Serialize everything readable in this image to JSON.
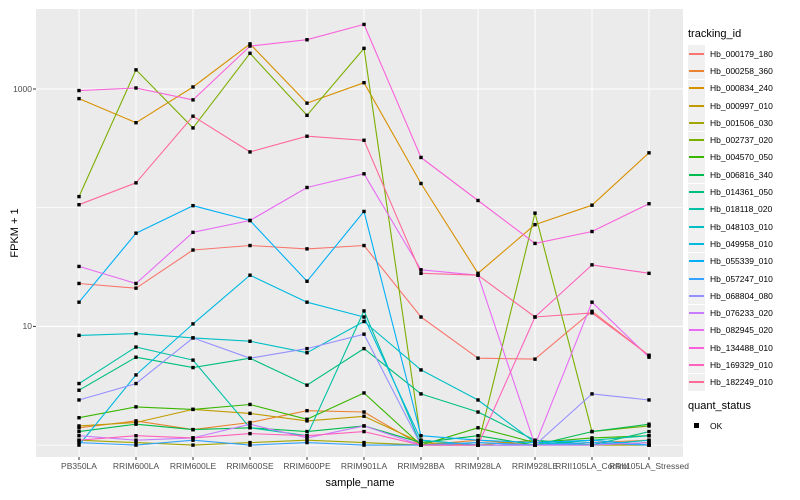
{
  "figure": {
    "y_axis_title": "FPKM + 1",
    "x_axis_title": "sample_name",
    "panel_bg": "#EBEBEB",
    "gridline_color": "#FFFFFF",
    "point_color": "#000000",
    "tick_label_color": "#4D4D4D"
  },
  "legend": {
    "tracking_title": "tracking_id",
    "quant_title": "quant_status",
    "quant_items": [
      {
        "label": "OK"
      }
    ]
  },
  "chart_data": {
    "type": "line",
    "title": "",
    "xlabel": "sample_name",
    "ylabel": "FPKM + 1",
    "y_scale": "log10",
    "y_tick_values": [
      1000,
      10
    ],
    "y_tick_labels": [
      "1000",
      "10"
    ],
    "y_minor_gridlines": [
      100,
      1
    ],
    "ylim": [
      0.7,
      5000
    ],
    "grid": "white major+minor gridlines on gray panel",
    "legend_position": "right",
    "point_shape": "small black square (quant_status = OK)",
    "categories": [
      "PB350LA",
      "RRIM600LA",
      "RRIM600LE",
      "RRIM600SE",
      "RRIM600PE",
      "RRIM901LA",
      "RRIM928BA",
      "RRIM928LA",
      "RRIM928LE",
      "RRII105LA_Control",
      "RRII105LA_Stressed"
    ],
    "series": [
      {
        "name": "Hb_000179_180",
        "color": "#F8766D",
        "values": [
          23,
          21,
          44,
          48,
          45,
          48,
          12,
          5.4,
          5.3,
          13.4,
          5.7
        ]
      },
      {
        "name": "Hb_000258_360",
        "color": "#EA8331",
        "values": [
          1.4,
          1.6,
          1.35,
          1.55,
          1.95,
          1.9,
          1.0,
          1.1,
          1.0,
          1.05,
          1.1
        ]
      },
      {
        "name": "Hb_000834_240",
        "color": "#D89000",
        "values": [
          830,
          520,
          1040,
          2400,
          760,
          1130,
          160,
          28,
          72,
          105,
          290
        ]
      },
      {
        "name": "Hb_000997_010",
        "color": "#C09B00",
        "values": [
          1.45,
          1.55,
          2.0,
          1.85,
          1.6,
          1.75,
          1.05,
          1.0,
          1.1,
          1.0,
          1.05
        ]
      },
      {
        "name": "Hb_001506_030",
        "color": "#A3A500",
        "values": [
          1.1,
          1.05,
          1.0,
          1.05,
          1.1,
          1.05,
          1.0,
          1.0,
          1.0,
          1.0,
          1.0
        ]
      },
      {
        "name": "Hb_002737_020",
        "color": "#7CAE00",
        "values": [
          124,
          1450,
          470,
          2000,
          600,
          2200,
          1.1,
          1.0,
          90,
          1.3,
          1.45
        ]
      },
      {
        "name": "Hb_004570_050",
        "color": "#39B600",
        "values": [
          1.7,
          2.1,
          2.0,
          2.2,
          1.65,
          2.75,
          1.0,
          1.4,
          1.05,
          1.15,
          1.2
        ]
      },
      {
        "name": "Hb_006816_340",
        "color": "#00BB4E",
        "values": [
          1.3,
          1.5,
          1.35,
          1.4,
          1.3,
          1.45,
          1.05,
          1.2,
          1.0,
          1.3,
          1.5
        ]
      },
      {
        "name": "Hb_014361_050",
        "color": "#00BF7D",
        "values": [
          2.9,
          5.5,
          4.5,
          5.4,
          3.2,
          6.5,
          2.7,
          1.9,
          1.1,
          1.0,
          1.3
        ]
      },
      {
        "name": "Hb_018118_020",
        "color": "#00C1A3",
        "values": [
          3.3,
          6.7,
          5.2,
          1.4,
          1.2,
          13.5,
          1.0,
          1.05,
          1.0,
          1.1,
          1.2
        ]
      },
      {
        "name": "Hb_048103_010",
        "color": "#00BFC4",
        "values": [
          8.4,
          8.7,
          8.0,
          7.5,
          6.0,
          11,
          4.3,
          2.4,
          1.05,
          1.0,
          1.1
        ]
      },
      {
        "name": "Hb_049958_010",
        "color": "#00BAE0",
        "values": [
          1.0,
          3.9,
          10.5,
          27,
          16,
          12,
          1.1,
          1.0,
          1.0,
          1.05,
          1.0
        ]
      },
      {
        "name": "Hb_055339_010",
        "color": "#00B0F6",
        "values": [
          16,
          61,
          104,
          78,
          24,
          93,
          1.2,
          1.1,
          1.05,
          1.1,
          1.0
        ]
      },
      {
        "name": "Hb_057247_010",
        "color": "#35A2FF",
        "values": [
          1.05,
          1.0,
          1.1,
          1.0,
          1.05,
          1.0,
          1.0,
          1.05,
          1.0,
          1.05,
          1.0
        ]
      },
      {
        "name": "Hb_068804_080",
        "color": "#9590FF",
        "values": [
          2.4,
          3.3,
          8.0,
          5.4,
          6.5,
          8.6,
          1.0,
          1.0,
          1.0,
          2.7,
          2.4
        ]
      },
      {
        "name": "Hb_076233_020",
        "color": "#C77CFF",
        "values": [
          1.2,
          1.1,
          1.15,
          1.5,
          1.15,
          1.45,
          1.0,
          1.0,
          1.0,
          1.0,
          1.05
        ]
      },
      {
        "name": "Hb_082945_020",
        "color": "#E76BF3",
        "values": [
          32,
          23,
          62,
          78,
          148,
          193,
          30,
          27,
          1.0,
          16,
          5.5
        ]
      },
      {
        "name": "Hb_134488_010",
        "color": "#FA62DB",
        "values": [
          970,
          1020,
          810,
          2300,
          2600,
          3500,
          265,
          115,
          50,
          63,
          108
        ]
      },
      {
        "name": "Hb_169329_010",
        "color": "#FF62BC",
        "values": [
          1.1,
          1.2,
          1.15,
          1.25,
          1.2,
          1.3,
          1.0,
          1.0,
          12,
          33,
          28
        ]
      },
      {
        "name": "Hb_182249_010",
        "color": "#FF6A98",
        "values": [
          106,
          162,
          590,
          295,
          400,
          370,
          28,
          27,
          12,
          13,
          5.7
        ]
      }
    ]
  }
}
